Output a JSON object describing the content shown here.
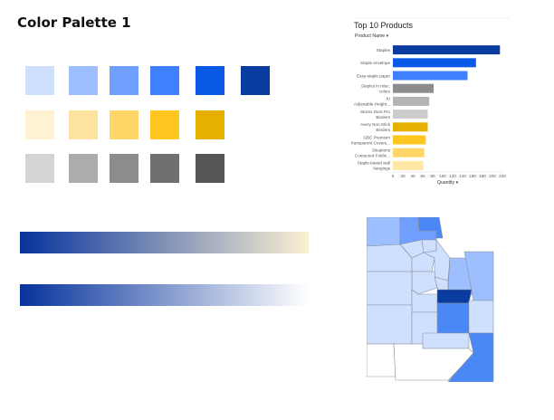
{
  "page": {
    "title": "Color Palette 1"
  },
  "palette": {
    "rows": [
      [
        "#cfe0ff",
        "#9ebfff",
        "#6f9fff",
        "#3e80ff",
        "#0a58e6",
        "#0a3b9e"
      ],
      [
        "#fff2d2",
        "#ffe3a0",
        "#ffd667",
        "#ffc61f",
        "#e6b000"
      ],
      [
        "#d4d4d4",
        "#acacac",
        "#8c8c8c",
        "#707070",
        "#555555"
      ]
    ]
  },
  "gradients": [
    {
      "from": "#06339c",
      "to": "#fbf0d2"
    },
    {
      "from": "#06339c",
      "to": "#ffffff"
    }
  ],
  "chart_data": {
    "type": "bar",
    "orientation": "horizontal",
    "title": "Top 10 Products",
    "category_header": "Product Name",
    "xlabel": "Quantity",
    "xlim": [
      0,
      220
    ],
    "xticks": [
      0,
      20,
      40,
      60,
      80,
      100,
      120,
      140,
      160,
      180,
      200,
      220
    ],
    "grid": false,
    "categories": [
      [
        "Staples"
      ],
      [
        "Staple envelope"
      ],
      [
        "Easy-staple paper"
      ],
      [
        "Staples in misc.",
        "colors"
      ],
      [
        "KI",
        "Adjustable-Height..."
      ],
      [
        "Storex Dura Pro",
        "Binders"
      ],
      [
        "Avery Non-Stick",
        "Binders"
      ],
      [
        "GBC Premium",
        "Transparent Covers..."
      ],
      [
        "Situations",
        "Contoured Foldin..."
      ],
      [
        "Staple-based wall",
        "hangings"
      ]
    ],
    "values": [
      215,
      167,
      150,
      82,
      73,
      70,
      70,
      66,
      63,
      61
    ],
    "colors": [
      "#0a3b9e",
      "#0a58e6",
      "#3e80ff",
      "#8c8c8c",
      "#b4b4b4",
      "#cccccc",
      "#e6b000",
      "#ffc61f",
      "#ffd667",
      "#ffe7a6"
    ]
  },
  "map": {
    "colors": {
      "light": "#cfe0ff",
      "mid": "#9ebfff",
      "medium": "#6f9fff",
      "strong": "#4a88f5",
      "dark": "#0a3b9e",
      "white": "#ffffff"
    }
  }
}
